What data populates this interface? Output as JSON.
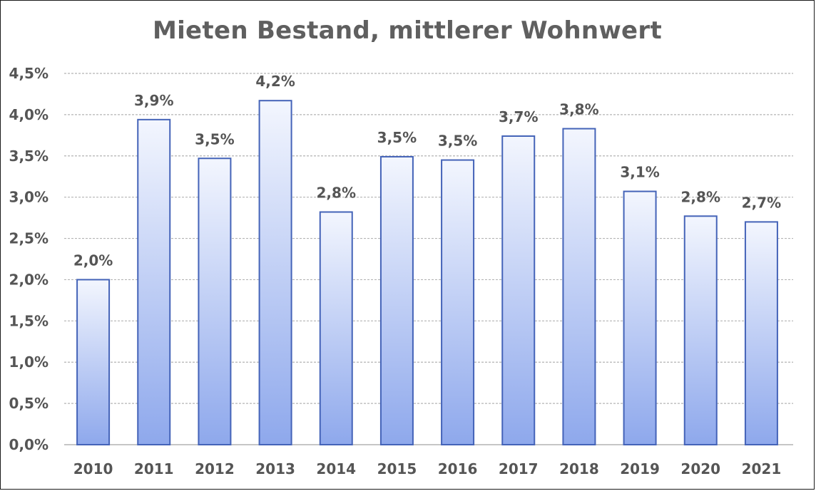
{
  "chart_data": {
    "type": "bar",
    "title": "Mieten Bestand, mittlerer Wohnwert",
    "xlabel": "",
    "ylabel": "",
    "categories": [
      "2010",
      "2011",
      "2012",
      "2013",
      "2014",
      "2015",
      "2016",
      "2017",
      "2018",
      "2019",
      "2020",
      "2021"
    ],
    "values": [
      2.0,
      3.94,
      3.47,
      4.17,
      2.82,
      3.49,
      3.45,
      3.74,
      3.83,
      3.07,
      2.77,
      2.7
    ],
    "data_labels": [
      "2,0%",
      "3,9%",
      "3,5%",
      "4,2%",
      "2,8%",
      "3,5%",
      "3,5%",
      "3,7%",
      "3,8%",
      "3,1%",
      "2,8%",
      "2,7%"
    ],
    "ylim": [
      0,
      4.5
    ],
    "yticks": [
      0,
      0.5,
      1.0,
      1.5,
      2.0,
      2.5,
      3.0,
      3.5,
      4.0,
      4.5
    ],
    "ytick_labels": [
      "0,0%",
      "0,5%",
      "1,0%",
      "1,5%",
      "2,0%",
      "2,5%",
      "3,0%",
      "3,5%",
      "4,0%",
      "4,5%"
    ],
    "grid": true,
    "legend": false,
    "colors": {
      "bar_top": "#f3f6fe",
      "bar_bottom": "#8ea8ec",
      "bar_stroke": "#4463b8",
      "grid": "#b4b4b4",
      "text": "#555555"
    }
  }
}
